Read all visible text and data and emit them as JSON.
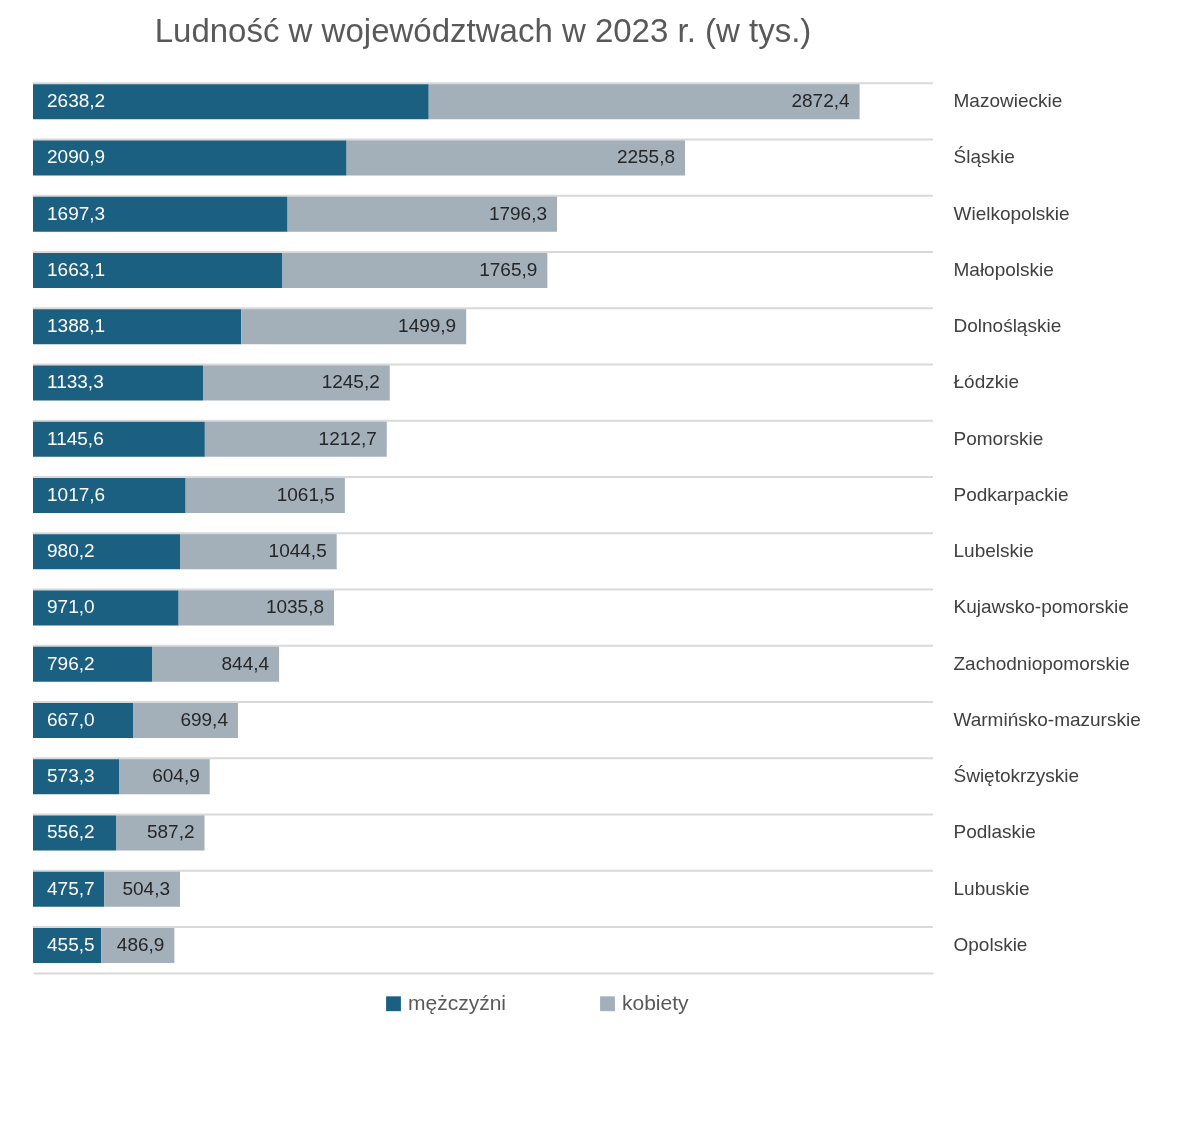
{
  "chart_data": {
    "type": "bar",
    "title": "Ludność w województwach w 2023 r. (w tys.)",
    "orientation": "horizontal",
    "stacked": true,
    "grid": "y",
    "legend": "bottom",
    "tick_labels": "y",
    "categories": [
      "Mazowieckie",
      "Śląskie",
      "Wielkopolskie",
      "Małopolskie",
      "Dolnośląskie",
      "Łódzkie",
      "Pomorskie",
      "Podkarpackie",
      "Lubelskie",
      "Kujawsko-pomorskie",
      "Zachodniopomorskie",
      "Warmińsko-mazurskie",
      "Świętokrzyskie",
      "Podlaskie",
      "Lubuskie",
      "Opolskie"
    ],
    "series": [
      {
        "name": "mężczyźni",
        "color": "#1b5f81",
        "values": [
          2638.2,
          2090.9,
          1697.3,
          1663.1,
          1388.1,
          1133.3,
          1145.6,
          1017.6,
          980.2,
          971.0,
          796.2,
          667.0,
          573.3,
          556.2,
          475.7,
          455.5
        ],
        "value_labels": [
          "2638,2",
          "2090,9",
          "1697,3",
          "1663,1",
          "1388,1",
          "1133,3",
          "1145,6",
          "1017,6",
          "980,2",
          "971,0",
          "796,2",
          "667,0",
          "573,3",
          "556,2",
          "475,7",
          "455,5"
        ]
      },
      {
        "name": "kobiety",
        "color": "#a3afb9",
        "values": [
          2872.4,
          2255.8,
          1796.3,
          1765.9,
          1499.9,
          1245.2,
          1212.7,
          1061.5,
          1044.5,
          1035.8,
          844.4,
          699.4,
          604.9,
          587.2,
          504.3,
          486.9
        ],
        "value_labels": [
          "2872,4",
          "2255,8",
          "1796,3",
          "1765,9",
          "1499,9",
          "1245,2",
          "1212,7",
          "1061,5",
          "1044,5",
          "1035,8",
          "844,4",
          "699,4",
          "604,9",
          "587,2",
          "504,3",
          "486,9"
        ]
      }
    ]
  }
}
